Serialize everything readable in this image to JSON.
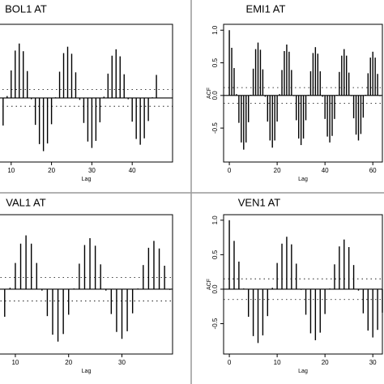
{
  "chart_data": [
    {
      "type": "stem",
      "title": "BOL1 AT",
      "xlabel": "Lag",
      "color": "#000000",
      "x": [
        8,
        9,
        10,
        11,
        12,
        13,
        14,
        15,
        16,
        17,
        18,
        19,
        20,
        21,
        22,
        23,
        24,
        25,
        26,
        27,
        28,
        29,
        30,
        31,
        32,
        33,
        34,
        35,
        36,
        37,
        38,
        39,
        40,
        41,
        42,
        43,
        44,
        45,
        46
      ],
      "values": [
        -0.43,
        0.03,
        0.43,
        0.74,
        0.85,
        0.73,
        0.42,
        -0.02,
        -0.42,
        -0.72,
        -0.83,
        -0.71,
        -0.41,
        0.01,
        0.41,
        0.7,
        0.8,
        0.69,
        0.4,
        -0.03,
        -0.39,
        -0.68,
        -0.78,
        -0.67,
        -0.38,
        0.02,
        0.38,
        0.66,
        0.76,
        0.65,
        0.37,
        -0.02,
        -0.37,
        -0.64,
        -0.73,
        -0.63,
        -0.36,
        0.01,
        0.36
      ],
      "xlim": [
        -1,
        50
      ],
      "xticks": [
        10,
        20,
        30,
        40
      ],
      "ylim": [
        -1.0,
        1.15
      ],
      "ci_lines": [
        -0.13,
        0.13
      ]
    },
    {
      "type": "stem",
      "title": "EMI1 AT",
      "xlabel": "Lag",
      "ylabel": "ACF",
      "color": "#000000",
      "x": [
        0,
        1,
        2,
        3,
        4,
        5,
        6,
        7,
        8,
        9,
        10,
        11,
        12,
        13,
        14,
        15,
        16,
        17,
        18,
        19,
        20,
        21,
        22,
        23,
        24,
        25,
        26,
        27,
        28,
        29,
        30,
        31,
        32,
        33,
        34,
        35,
        36,
        37,
        38,
        39,
        40,
        41,
        42,
        43,
        44,
        45,
        46,
        47,
        48,
        49,
        50,
        51,
        52,
        53,
        54,
        55,
        56,
        57,
        58,
        59,
        60,
        61,
        62,
        63
      ],
      "values": [
        1.0,
        0.73,
        0.42,
        0.02,
        -0.42,
        -0.72,
        -0.83,
        -0.72,
        -0.41,
        0.01,
        0.41,
        0.71,
        0.81,
        0.7,
        0.4,
        -0.02,
        -0.4,
        -0.69,
        -0.8,
        -0.69,
        -0.4,
        0.02,
        0.39,
        0.68,
        0.78,
        0.67,
        0.39,
        -0.01,
        -0.38,
        -0.66,
        -0.76,
        -0.66,
        -0.38,
        0.01,
        0.37,
        0.65,
        0.74,
        0.64,
        0.37,
        -0.02,
        -0.36,
        -0.63,
        -0.72,
        -0.62,
        -0.36,
        0.01,
        0.36,
        0.61,
        0.71,
        0.61,
        0.35,
        -0.01,
        -0.35,
        -0.6,
        -0.69,
        -0.59,
        -0.34,
        0.01,
        0.34,
        0.58,
        0.67,
        0.58,
        0.33,
        -0.01
      ],
      "xlim": [
        -2.4,
        64
      ],
      "xticks": [
        0,
        20,
        40,
        60
      ],
      "ylim": [
        -1.02,
        1.09
      ],
      "yticks": [
        {
          "value": -0.5,
          "label": "-0.5"
        },
        {
          "value": 0,
          "label": "0.0"
        },
        0.5,
        {
          "value": 1,
          "label": "1.0"
        }
      ],
      "ci_lines": [
        -0.12,
        0.12
      ]
    },
    {
      "type": "stem",
      "title": "VAL1 AT",
      "xlabel": "Lag",
      "color": "#000000",
      "x": [
        8,
        9,
        10,
        11,
        12,
        13,
        14,
        15,
        16,
        17,
        18,
        19,
        20,
        21,
        22,
        23,
        24,
        25,
        26,
        27,
        28,
        29,
        30,
        31,
        32,
        33,
        34,
        35,
        36,
        37,
        38,
        39
      ],
      "values": [
        -0.4,
        0.02,
        0.38,
        0.66,
        0.78,
        0.66,
        0.38,
        -0.02,
        -0.39,
        -0.66,
        -0.76,
        -0.65,
        -0.37,
        0.01,
        0.37,
        0.64,
        0.74,
        0.63,
        0.36,
        -0.02,
        -0.36,
        -0.62,
        -0.72,
        -0.61,
        -0.35,
        0.01,
        0.35,
        0.6,
        0.7,
        0.59,
        0.34,
        -0.01
      ],
      "xlim": [
        -2,
        39.5
      ],
      "xticks": [
        10,
        20,
        30
      ],
      "ylim": [
        -0.94,
        1.08
      ],
      "ci_lines": [
        -0.17,
        0.17
      ]
    },
    {
      "type": "stem",
      "title": "VEN1 AT",
      "xlabel": "Lag",
      "ylabel": "ACF",
      "color": "#000000",
      "x": [
        0,
        1,
        2,
        3,
        4,
        5,
        6,
        7,
        8,
        9,
        10,
        11,
        12,
        13,
        14,
        15,
        16,
        17,
        18,
        19,
        20,
        21,
        22,
        23,
        24,
        25,
        26,
        27,
        28,
        29,
        30,
        31,
        32
      ],
      "values": [
        1.0,
        0.7,
        0.4,
        0.01,
        -0.4,
        -0.68,
        -0.78,
        -0.67,
        -0.39,
        0.02,
        0.38,
        0.66,
        0.76,
        0.65,
        0.37,
        -0.01,
        -0.37,
        -0.64,
        -0.74,
        -0.63,
        -0.36,
        0.01,
        0.36,
        0.62,
        0.72,
        0.61,
        0.35,
        -0.02,
        -0.35,
        -0.6,
        -0.7,
        -0.59,
        -0.34
      ],
      "xlim": [
        -1.2,
        32
      ],
      "xticks": [
        0,
        10,
        20,
        30
      ],
      "ylim": [
        -0.94,
        1.08
      ],
      "yticks": [
        {
          "value": -0.5,
          "label": "-0.5"
        },
        {
          "value": 0,
          "label": "0.0"
        },
        0.5,
        {
          "value": 1,
          "label": "1.0"
        }
      ],
      "ci_lines": [
        -0.15,
        0.15
      ]
    }
  ]
}
